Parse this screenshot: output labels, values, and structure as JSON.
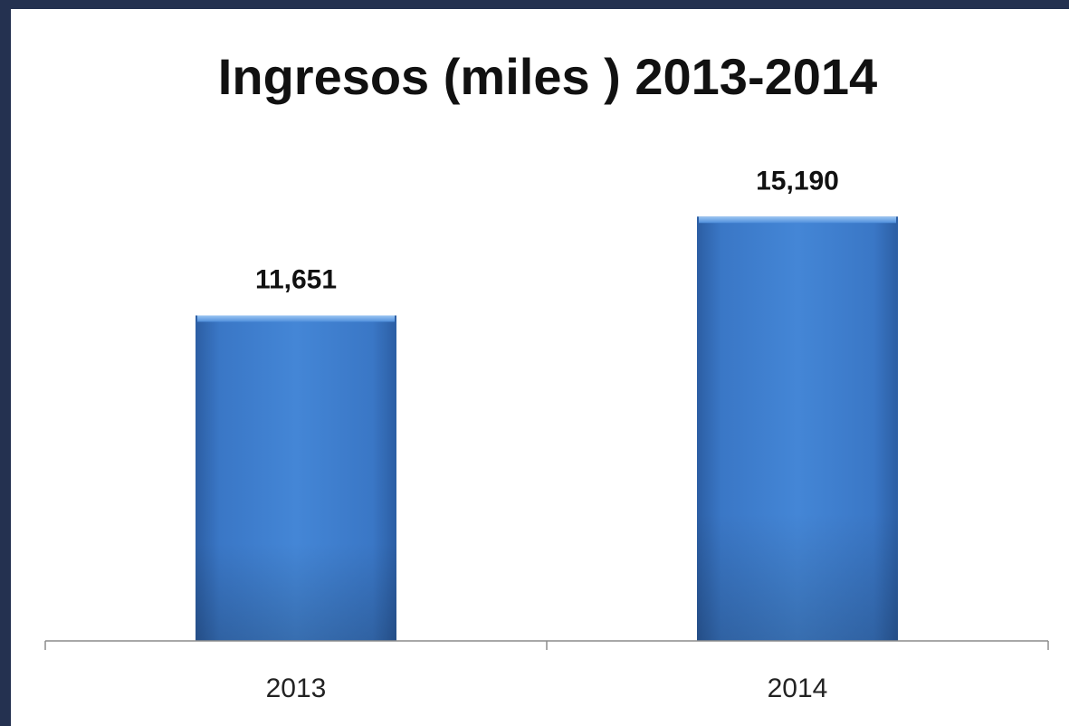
{
  "chart_data": {
    "type": "bar",
    "title": "Ingresos (miles ) 2013-2014",
    "categories": [
      "2013",
      "2014"
    ],
    "values": [
      11651,
      15190
    ],
    "value_labels": [
      "11,651",
      "15,190"
    ],
    "xlabel": "",
    "ylabel": "",
    "ylim": [
      0,
      17500
    ],
    "grid": false,
    "legend": "none",
    "colors": {
      "bar_top": "#5fa0e4",
      "bar_main": "#3f7fcf",
      "bar_bottom": "#2d60a6",
      "background": "#ffffff",
      "frame": "#243150",
      "text": "#111111"
    }
  }
}
